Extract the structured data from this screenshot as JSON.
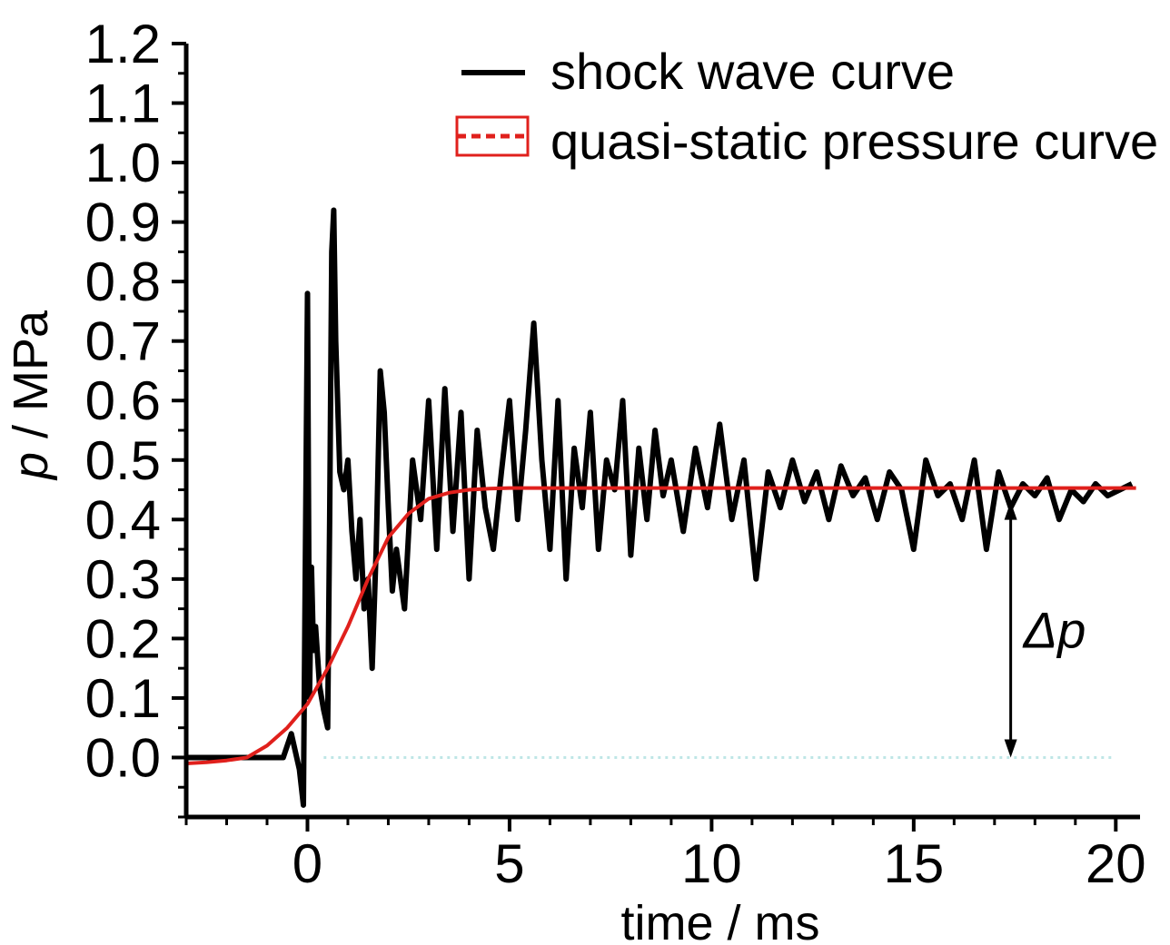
{
  "chart_data": {
    "type": "line",
    "xlabel": "time / ms",
    "ylabel_var": "p",
    "ylabel_unit": " / MPa",
    "xlim": [
      -3.0,
      20.6
    ],
    "ylim": [
      -0.1,
      1.2
    ],
    "x_ticks": [
      0,
      5,
      10,
      15,
      20
    ],
    "x_tick_labels": [
      "0",
      "5",
      "10",
      "15",
      "20"
    ],
    "y_ticks": [
      0.0,
      0.1,
      0.2,
      0.3,
      0.4,
      0.5,
      0.6,
      0.7,
      0.8,
      0.9,
      1.0,
      1.1,
      1.2
    ],
    "y_tick_labels": [
      "0.0",
      "0.1",
      "0.2",
      "0.3",
      "0.4",
      "0.5",
      "0.6",
      "0.7",
      "0.8",
      "0.9",
      "1.0",
      "1.1",
      "1.2"
    ],
    "x_minor_step": 1,
    "y_minor_step": 0.05,
    "grid": false,
    "legend_position": "top-right",
    "series": [
      {
        "name": "shock wave curve",
        "color": "#000000",
        "style": "solid",
        "x": [
          -3.0,
          -2.5,
          -2.0,
          -1.5,
          -1.0,
          -0.6,
          -0.4,
          -0.2,
          -0.1,
          0.0,
          0.05,
          0.1,
          0.15,
          0.2,
          0.3,
          0.4,
          0.5,
          0.55,
          0.6,
          0.65,
          0.7,
          0.8,
          0.9,
          1.0,
          1.1,
          1.2,
          1.3,
          1.4,
          1.5,
          1.6,
          1.7,
          1.8,
          1.9,
          2.0,
          2.1,
          2.2,
          2.4,
          2.6,
          2.8,
          3.0,
          3.2,
          3.4,
          3.6,
          3.8,
          4.0,
          4.2,
          4.4,
          4.6,
          4.8,
          5.0,
          5.2,
          5.4,
          5.6,
          5.8,
          6.0,
          6.2,
          6.4,
          6.6,
          6.8,
          7.0,
          7.2,
          7.4,
          7.6,
          7.8,
          8.0,
          8.2,
          8.4,
          8.6,
          8.8,
          9.0,
          9.3,
          9.6,
          9.9,
          10.2,
          10.5,
          10.8,
          11.1,
          11.4,
          11.7,
          12.0,
          12.3,
          12.6,
          12.9,
          13.2,
          13.5,
          13.8,
          14.1,
          14.4,
          14.7,
          15.0,
          15.3,
          15.6,
          15.9,
          16.2,
          16.5,
          16.8,
          17.1,
          17.4,
          17.7,
          18.0,
          18.3,
          18.6,
          18.9,
          19.2,
          19.5,
          19.8,
          20.1,
          20.4
        ],
        "y": [
          0.0,
          0.0,
          0.0,
          0.0,
          0.0,
          0.0,
          0.04,
          -0.02,
          -0.08,
          0.78,
          0.1,
          0.32,
          0.18,
          0.22,
          0.12,
          0.08,
          0.05,
          0.4,
          0.85,
          0.92,
          0.7,
          0.48,
          0.45,
          0.5,
          0.38,
          0.3,
          0.4,
          0.25,
          0.3,
          0.15,
          0.35,
          0.65,
          0.58,
          0.42,
          0.28,
          0.35,
          0.25,
          0.5,
          0.4,
          0.6,
          0.35,
          0.62,
          0.38,
          0.58,
          0.3,
          0.55,
          0.42,
          0.35,
          0.48,
          0.6,
          0.4,
          0.55,
          0.73,
          0.5,
          0.35,
          0.6,
          0.3,
          0.52,
          0.42,
          0.58,
          0.35,
          0.5,
          0.45,
          0.6,
          0.34,
          0.52,
          0.4,
          0.55,
          0.44,
          0.5,
          0.38,
          0.52,
          0.42,
          0.56,
          0.4,
          0.5,
          0.3,
          0.48,
          0.42,
          0.5,
          0.43,
          0.48,
          0.4,
          0.49,
          0.44,
          0.47,
          0.4,
          0.48,
          0.45,
          0.35,
          0.5,
          0.44,
          0.46,
          0.4,
          0.5,
          0.35,
          0.48,
          0.42,
          0.46,
          0.44,
          0.47,
          0.4,
          0.45,
          0.43,
          0.46,
          0.44,
          0.45,
          0.46
        ]
      },
      {
        "name": "quasi-static pressure curve",
        "color": "#e0201c",
        "style": "solid",
        "x": [
          -3.0,
          -2.5,
          -2.0,
          -1.5,
          -1.0,
          -0.5,
          0.0,
          0.5,
          1.0,
          1.5,
          2.0,
          2.5,
          3.0,
          3.5,
          4.0,
          4.5,
          5.0,
          6.0,
          8.0,
          10.0,
          12.0,
          14.0,
          16.0,
          18.0,
          20.0,
          20.5
        ],
        "y": [
          -0.01,
          -0.008,
          -0.005,
          0.0,
          0.02,
          0.05,
          0.09,
          0.15,
          0.22,
          0.3,
          0.37,
          0.41,
          0.435,
          0.445,
          0.45,
          0.452,
          0.453,
          0.453,
          0.453,
          0.453,
          0.453,
          0.453,
          0.453,
          0.453,
          0.453,
          0.453
        ]
      },
      {
        "name": "",
        "color": "#bfe6e6",
        "style": "dotted",
        "x": [
          0.4,
          20.0
        ],
        "y": [
          0.0,
          0.0
        ]
      }
    ],
    "annotations": [
      {
        "text": "Δp",
        "x": 17.4,
        "y_from": 0.0,
        "y_to": 0.43
      }
    ]
  }
}
